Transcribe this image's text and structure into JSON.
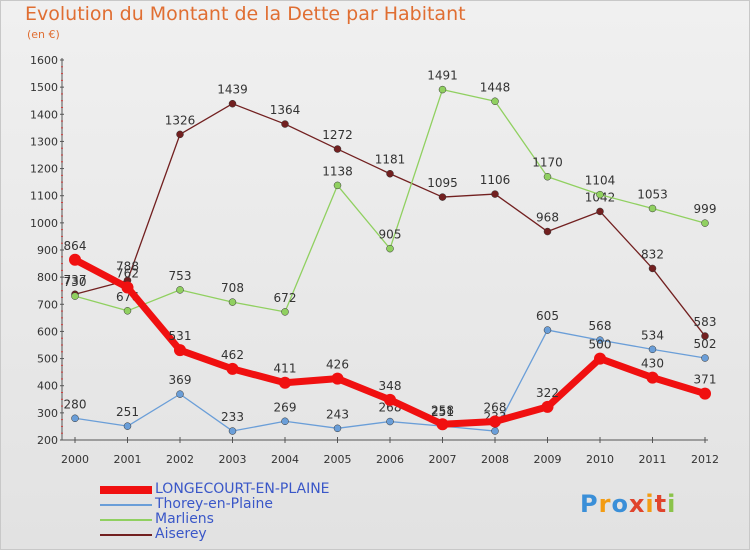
{
  "title": "Evolution du Montant de la Dette par Habitant",
  "unit": "(en €)",
  "logo": {
    "text": "Proxiti",
    "colors": [
      "#3a8fd8",
      "#f39c12",
      "#3a8fd8",
      "#e0442c",
      "#f39c12",
      "#e0442c",
      "#8bc34a"
    ]
  },
  "chart_data": {
    "type": "line",
    "title": "Evolution du Montant de la Dette par Habitant",
    "ylabel": "(en €)",
    "xlabel": "",
    "x": [
      "2000",
      "2001",
      "2002",
      "2003",
      "2004",
      "2005",
      "2006",
      "2007",
      "2008",
      "2009",
      "2010",
      "2011",
      "2012"
    ],
    "ylim": [
      200,
      1600
    ],
    "yticks": [
      200,
      300,
      400,
      500,
      600,
      700,
      800,
      900,
      1000,
      1100,
      1200,
      1300,
      1400,
      1500,
      1600
    ],
    "grid": false,
    "legend": "bottom-left",
    "series": [
      {
        "name": "Aiserey",
        "color": "#722020",
        "values": [
          737,
          788,
          1326,
          1439,
          1364,
          1272,
          1181,
          1095,
          1106,
          968,
          1042,
          832,
          583
        ],
        "labels": [
          "737",
          "788",
          "1326",
          "1439",
          "1364",
          "1272",
          "1181",
          "1095",
          "1106",
          "968",
          "1042",
          "832",
          "583"
        ]
      },
      {
        "name": "Marliens",
        "color": "#90d060",
        "values": [
          730,
          676,
          753,
          708,
          672,
          1138,
          905,
          1491,
          1448,
          1170,
          1104,
          1053,
          999
        ],
        "labels": [
          "730",
          "676",
          "753",
          "708",
          "672",
          "1138",
          "905",
          "1491",
          "1448",
          "1170",
          "1104",
          "1053",
          "999"
        ]
      },
      {
        "name": "Thorey-en-Plaine",
        "color": "#6a9ed8",
        "values": [
          280,
          251,
          369,
          233,
          269,
          243,
          268,
          251,
          233,
          605,
          568,
          534,
          502
        ],
        "labels": [
          "280",
          "251",
          "369",
          "233",
          "269",
          "243",
          "268",
          "251",
          "233",
          "605",
          "568",
          "534",
          "502"
        ]
      },
      {
        "name": "LONGECOURT-EN-PLAINE",
        "color": "#f01010",
        "values": [
          864,
          762,
          531,
          462,
          411,
          426,
          348,
          258,
          268,
          322,
          500,
          430,
          371
        ],
        "labels": [
          "864",
          "762",
          "531",
          "462",
          "411",
          "426",
          "348",
          "258",
          "268",
          "322",
          "500",
          "430",
          "371"
        ]
      }
    ]
  },
  "legend_order": [
    "LONGECOURT-EN-PLAINE",
    "Thorey-en-Plaine",
    "Marliens",
    "Aiserey"
  ]
}
